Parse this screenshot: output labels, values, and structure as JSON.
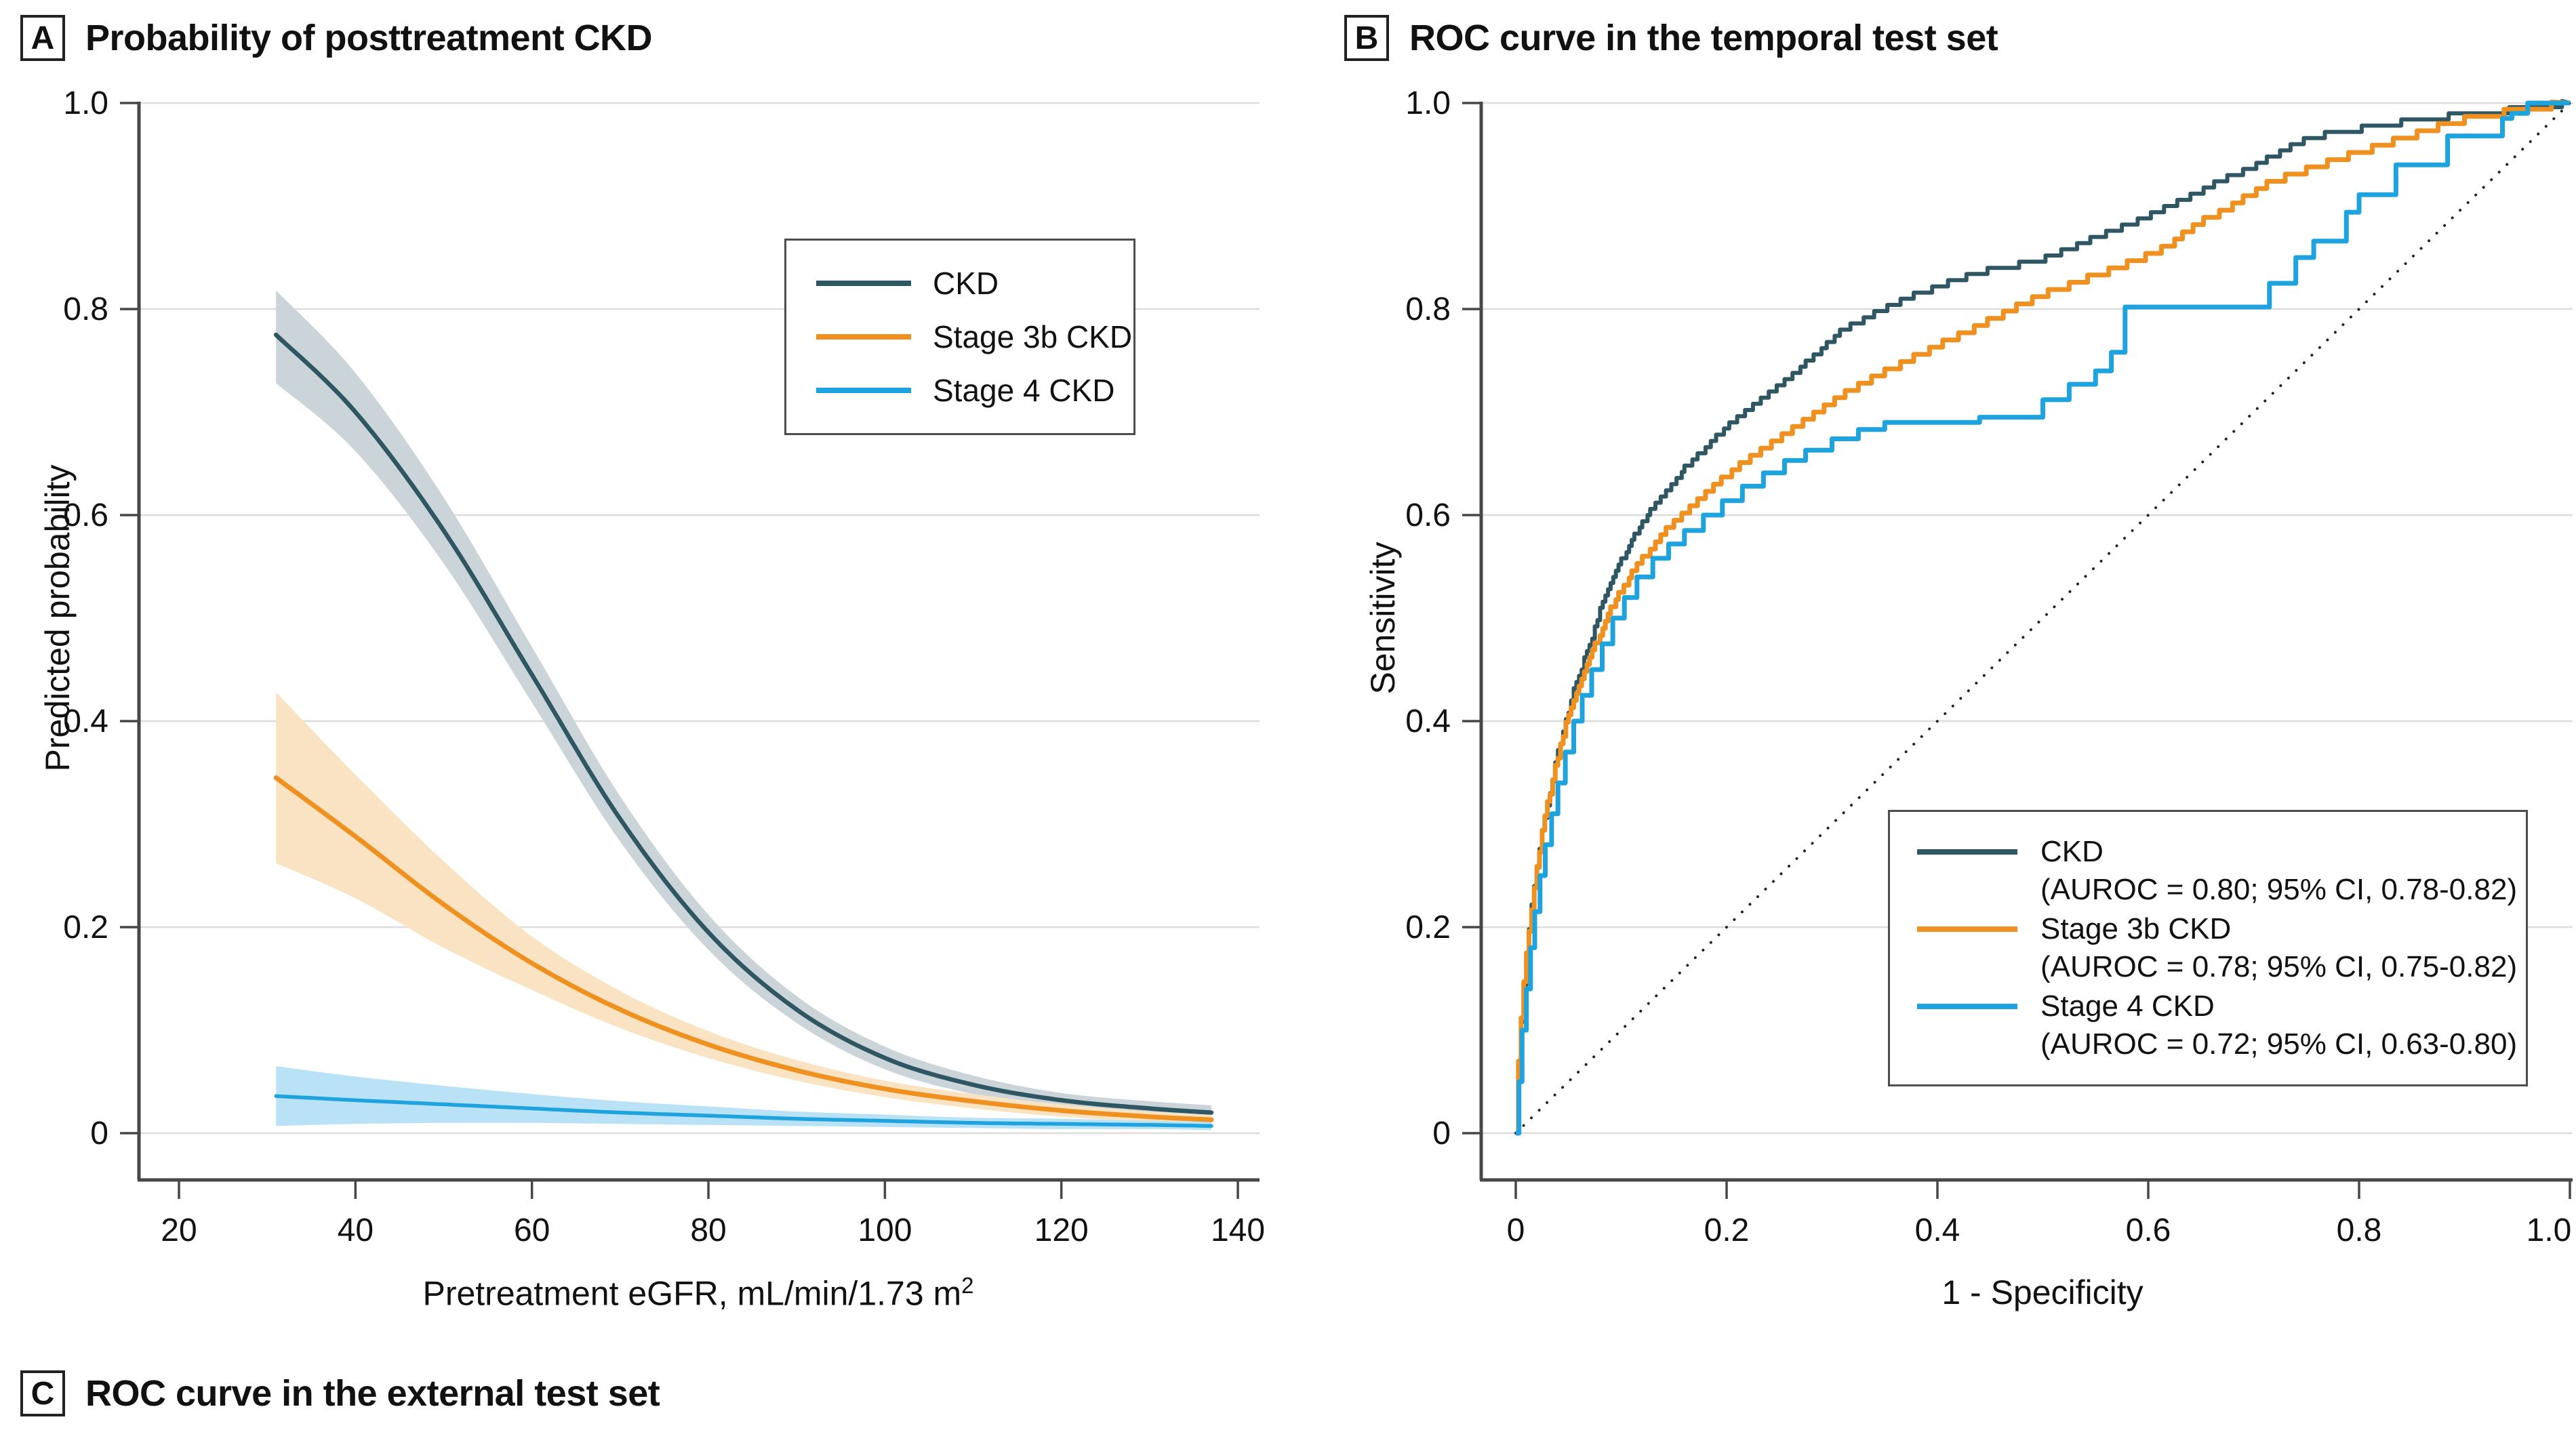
{
  "colors": {
    "ckd": "#2E5763",
    "ckd_band": "#CBD4D8",
    "stage3b": "#EE9121",
    "stage3b_band": "#FAE3C3",
    "stage4": "#1FA3DF",
    "stage4_band": "#B9E2F6",
    "grid": "#DCDCDC",
    "axis": "#474747",
    "text": "#111111",
    "diagonal": "#222222"
  },
  "panelA": {
    "label": "A",
    "title": "Probability of posttreatment CKD",
    "xlabel_base": "Pretreatment eGFR, mL/min/1.73 m",
    "xlabel_sup": "2",
    "ylabel": "Predicted probability",
    "legend": [
      {
        "name": "CKD",
        "color": "#2E5763"
      },
      {
        "name": "Stage 3b CKD",
        "color": "#EE9121"
      },
      {
        "name": "Stage 4 CKD",
        "color": "#1FA3DF"
      }
    ]
  },
  "panelB": {
    "label": "B",
    "title": "ROC curve in the temporal test set",
    "xlabel": "1 - Specificity",
    "ylabel": "Sensitivity",
    "legend": [
      {
        "name": "CKD",
        "auroc": "(AUROC = 0.80; 95% CI, 0.78-0.82)",
        "color": "#2E5763"
      },
      {
        "name": "Stage 3b CKD",
        "auroc": "(AUROC = 0.78; 95% CI, 0.75-0.82)",
        "color": "#EE9121"
      },
      {
        "name": "Stage 4 CKD",
        "auroc": "(AUROC = 0.72; 95% CI, 0.63-0.80)",
        "color": "#1FA3DF"
      }
    ]
  },
  "panelC": {
    "label": "C",
    "title": "ROC curve in the external test set"
  },
  "chart_data": [
    {
      "id": "A",
      "type": "line",
      "title": "Probability of posttreatment CKD",
      "xlabel": "Pretreatment eGFR, mL/min/1.73 m2",
      "ylabel": "Predicted probability",
      "xlim": [
        15.5,
        142
      ],
      "ylim": [
        0,
        1.0
      ],
      "grid": "horizontal",
      "legend_position": "upper right",
      "xticks": {
        "values": [
          20,
          40,
          60,
          80,
          100,
          120,
          140
        ],
        "labels": [
          "20",
          "40",
          "60",
          "80",
          "100",
          "120",
          "140"
        ]
      },
      "yticks": {
        "values": [
          0,
          0.2,
          0.4,
          0.6,
          0.8,
          1.0
        ],
        "labels": [
          "0",
          "0.2",
          "0.4",
          "0.6",
          "0.8",
          "1.0"
        ]
      },
      "series": [
        {
          "name": "CKD",
          "color": "#2E5763",
          "band_color": "#CBD4D8",
          "x": [
            31,
            40,
            50,
            60,
            70,
            80,
            90,
            100,
            110,
            120,
            130,
            137
          ],
          "y": [
            0.775,
            0.7,
            0.585,
            0.445,
            0.305,
            0.195,
            0.12,
            0.073,
            0.047,
            0.032,
            0.024,
            0.02
          ],
          "lo": [
            0.728,
            0.662,
            0.553,
            0.418,
            0.283,
            0.178,
            0.107,
            0.062,
            0.038,
            0.025,
            0.017,
            0.013
          ],
          "hi": [
            0.818,
            0.738,
            0.617,
            0.472,
            0.327,
            0.212,
            0.133,
            0.084,
            0.056,
            0.039,
            0.031,
            0.027
          ]
        },
        {
          "name": "Stage 3b CKD",
          "color": "#EE9121",
          "band_color": "#FAE3C3",
          "x": [
            31,
            40,
            50,
            60,
            70,
            80,
            90,
            100,
            110,
            120,
            130,
            137
          ],
          "y": [
            0.345,
            0.288,
            0.222,
            0.165,
            0.12,
            0.086,
            0.061,
            0.043,
            0.031,
            0.022,
            0.016,
            0.013
          ],
          "lo": [
            0.262,
            0.228,
            0.18,
            0.139,
            0.102,
            0.073,
            0.051,
            0.035,
            0.024,
            0.016,
            0.011,
            0.008
          ],
          "hi": [
            0.428,
            0.348,
            0.264,
            0.191,
            0.138,
            0.099,
            0.071,
            0.051,
            0.038,
            0.028,
            0.021,
            0.018
          ]
        },
        {
          "name": "Stage 4 CKD",
          "color": "#1FA3DF",
          "band_color": "#B9E2F6",
          "x": [
            31,
            40,
            50,
            60,
            70,
            80,
            90,
            100,
            110,
            120,
            130,
            137
          ],
          "y": [
            0.036,
            0.032,
            0.028,
            0.024,
            0.02,
            0.017,
            0.014,
            0.012,
            0.01,
            0.009,
            0.008,
            0.007
          ],
          "lo": [
            0.007,
            0.009,
            0.01,
            0.01,
            0.009,
            0.008,
            0.007,
            0.006,
            0.005,
            0.004,
            0.004,
            0.003
          ],
          "hi": [
            0.065,
            0.055,
            0.046,
            0.038,
            0.031,
            0.026,
            0.021,
            0.018,
            0.015,
            0.014,
            0.012,
            0.011
          ]
        }
      ]
    },
    {
      "id": "B",
      "type": "roc",
      "title": "ROC curve in the temporal test set",
      "xlabel": "1 - Specificity",
      "ylabel": "Sensitivity",
      "xlim": [
        0,
        1.0
      ],
      "ylim": [
        0,
        1.0
      ],
      "grid": "horizontal",
      "diagonal_reference": true,
      "legend_position": "lower right",
      "xticks": {
        "values": [
          0,
          0.2,
          0.4,
          0.6,
          0.8,
          1.0
        ],
        "labels": [
          "0",
          "0.2",
          "0.4",
          "0.6",
          "0.8",
          "1.0"
        ]
      },
      "yticks": {
        "values": [
          0,
          0.2,
          0.4,
          0.6,
          0.8,
          1.0
        ],
        "labels": [
          "0",
          "0.2",
          "0.4",
          "0.6",
          "0.8",
          "1.0"
        ]
      },
      "series": [
        {
          "name": "CKD",
          "auroc": 0.8,
          "ci": [
            0.78,
            0.82
          ],
          "color": "#2E5763",
          "style": "fine-steps",
          "quantum": 0.006,
          "points": [
            [
              0,
              0
            ],
            [
              0.002,
              0.05
            ],
            [
              0.004,
              0.09
            ],
            [
              0.006,
              0.12
            ],
            [
              0.008,
              0.15
            ],
            [
              0.01,
              0.17
            ],
            [
              0.013,
              0.2
            ],
            [
              0.016,
              0.23
            ],
            [
              0.02,
              0.26
            ],
            [
              0.025,
              0.295
            ],
            [
              0.03,
              0.32
            ],
            [
              0.035,
              0.345
            ],
            [
              0.04,
              0.37
            ],
            [
              0.045,
              0.39
            ],
            [
              0.05,
              0.41
            ],
            [
              0.055,
              0.43
            ],
            [
              0.06,
              0.445
            ],
            [
              0.065,
              0.46
            ],
            [
              0.07,
              0.475
            ],
            [
              0.075,
              0.49
            ],
            [
              0.08,
              0.51
            ],
            [
              0.09,
              0.535
            ],
            [
              0.1,
              0.555
            ],
            [
              0.11,
              0.575
            ],
            [
              0.12,
              0.592
            ],
            [
              0.13,
              0.607
            ],
            [
              0.14,
              0.62
            ],
            [
              0.15,
              0.632
            ],
            [
              0.16,
              0.645
            ],
            [
              0.18,
              0.665
            ],
            [
              0.2,
              0.685
            ],
            [
              0.22,
              0.702
            ],
            [
              0.24,
              0.718
            ],
            [
              0.26,
              0.734
            ],
            [
              0.28,
              0.752
            ],
            [
              0.3,
              0.77
            ],
            [
              0.31,
              0.78
            ],
            [
              0.33,
              0.79
            ],
            [
              0.35,
              0.8
            ],
            [
              0.37,
              0.81
            ],
            [
              0.39,
              0.818
            ],
            [
              0.41,
              0.825
            ],
            [
              0.43,
              0.832
            ],
            [
              0.45,
              0.838
            ],
            [
              0.47,
              0.842
            ],
            [
              0.49,
              0.845
            ],
            [
              0.51,
              0.852
            ],
            [
              0.53,
              0.86
            ],
            [
              0.55,
              0.87
            ],
            [
              0.57,
              0.878
            ],
            [
              0.59,
              0.886
            ],
            [
              0.61,
              0.895
            ],
            [
              0.63,
              0.905
            ],
            [
              0.65,
              0.915
            ],
            [
              0.67,
              0.925
            ],
            [
              0.69,
              0.934
            ],
            [
              0.71,
              0.944
            ],
            [
              0.73,
              0.955
            ],
            [
              0.75,
              0.965
            ],
            [
              0.77,
              0.97
            ],
            [
              0.8,
              0.975
            ],
            [
              0.83,
              0.98
            ],
            [
              0.86,
              0.984
            ],
            [
              0.89,
              0.988
            ],
            [
              0.92,
              0.991
            ],
            [
              0.95,
              0.994
            ],
            [
              0.975,
              0.997
            ],
            [
              1,
              1
            ]
          ]
        },
        {
          "name": "Stage 3b CKD",
          "auroc": 0.78,
          "ci": [
            0.75,
            0.82
          ],
          "color": "#EE9121",
          "style": "fine-steps",
          "quantum": 0.007,
          "points": [
            [
              0,
              0
            ],
            [
              0.002,
              0.06
            ],
            [
              0.004,
              0.1
            ],
            [
              0.006,
              0.13
            ],
            [
              0.009,
              0.165
            ],
            [
              0.012,
              0.195
            ],
            [
              0.015,
              0.22
            ],
            [
              0.019,
              0.25
            ],
            [
              0.024,
              0.285
            ],
            [
              0.03,
              0.32
            ],
            [
              0.036,
              0.35
            ],
            [
              0.042,
              0.375
            ],
            [
              0.048,
              0.398
            ],
            [
              0.055,
              0.42
            ],
            [
              0.062,
              0.44
            ],
            [
              0.07,
              0.46
            ],
            [
              0.078,
              0.48
            ],
            [
              0.086,
              0.5
            ],
            [
              0.095,
              0.518
            ],
            [
              0.105,
              0.535
            ],
            [
              0.115,
              0.55
            ],
            [
              0.13,
              0.57
            ],
            [
              0.145,
              0.588
            ],
            [
              0.16,
              0.602
            ],
            [
              0.18,
              0.62
            ],
            [
              0.2,
              0.638
            ],
            [
              0.22,
              0.654
            ],
            [
              0.24,
              0.668
            ],
            [
              0.26,
              0.682
            ],
            [
              0.28,
              0.696
            ],
            [
              0.3,
              0.71
            ],
            [
              0.32,
              0.722
            ],
            [
              0.34,
              0.733
            ],
            [
              0.36,
              0.744
            ],
            [
              0.38,
              0.754
            ],
            [
              0.4,
              0.764
            ],
            [
              0.42,
              0.774
            ],
            [
              0.44,
              0.784
            ],
            [
              0.46,
              0.794
            ],
            [
              0.48,
              0.804
            ],
            [
              0.5,
              0.814
            ],
            [
              0.53,
              0.825
            ],
            [
              0.56,
              0.836
            ],
            [
              0.59,
              0.848
            ],
            [
              0.62,
              0.862
            ],
            [
              0.65,
              0.885
            ],
            [
              0.68,
              0.9
            ],
            [
              0.71,
              0.92
            ],
            [
              0.74,
              0.932
            ],
            [
              0.77,
              0.942
            ],
            [
              0.8,
              0.952
            ],
            [
              0.83,
              0.962
            ],
            [
              0.86,
              0.972
            ],
            [
              0.89,
              0.982
            ],
            [
              0.92,
              0.988
            ],
            [
              0.95,
              0.993
            ],
            [
              1,
              1
            ]
          ]
        },
        {
          "name": "Stage 4 CKD",
          "auroc": 0.72,
          "ci": [
            0.63,
            0.8
          ],
          "color": "#1FA3DF",
          "style": "coarse-steps",
          "points": [
            [
              0,
              0
            ],
            [
              0.003,
              0.05
            ],
            [
              0.006,
              0.1
            ],
            [
              0.01,
              0.14
            ],
            [
              0.014,
              0.18
            ],
            [
              0.018,
              0.215
            ],
            [
              0.023,
              0.25
            ],
            [
              0.028,
              0.28
            ],
            [
              0.034,
              0.31
            ],
            [
              0.04,
              0.34
            ],
            [
              0.047,
              0.37
            ],
            [
              0.055,
              0.4
            ],
            [
              0.063,
              0.425
            ],
            [
              0.072,
              0.45
            ],
            [
              0.082,
              0.475
            ],
            [
              0.092,
              0.5
            ],
            [
              0.103,
              0.52
            ],
            [
              0.115,
              0.54
            ],
            [
              0.13,
              0.558
            ],
            [
              0.145,
              0.572
            ],
            [
              0.16,
              0.585
            ],
            [
              0.178,
              0.6
            ],
            [
              0.196,
              0.614
            ],
            [
              0.215,
              0.628
            ],
            [
              0.235,
              0.641
            ],
            [
              0.255,
              0.653
            ],
            [
              0.275,
              0.663
            ],
            [
              0.3,
              0.674
            ],
            [
              0.325,
              0.683
            ],
            [
              0.35,
              0.69
            ],
            [
              0.44,
              0.695
            ],
            [
              0.5,
              0.712
            ],
            [
              0.525,
              0.727
            ],
            [
              0.55,
              0.74
            ],
            [
              0.565,
              0.758
            ],
            [
              0.578,
              0.802
            ],
            [
              0.715,
              0.825
            ],
            [
              0.74,
              0.85
            ],
            [
              0.757,
              0.866
            ],
            [
              0.788,
              0.894
            ],
            [
              0.8,
              0.911
            ],
            [
              0.835,
              0.94
            ],
            [
              0.884,
              0.968
            ],
            [
              0.936,
              0.985
            ],
            [
              0.945,
              0.99
            ],
            [
              0.96,
              1.0
            ],
            [
              1,
              1
            ]
          ]
        }
      ]
    }
  ]
}
